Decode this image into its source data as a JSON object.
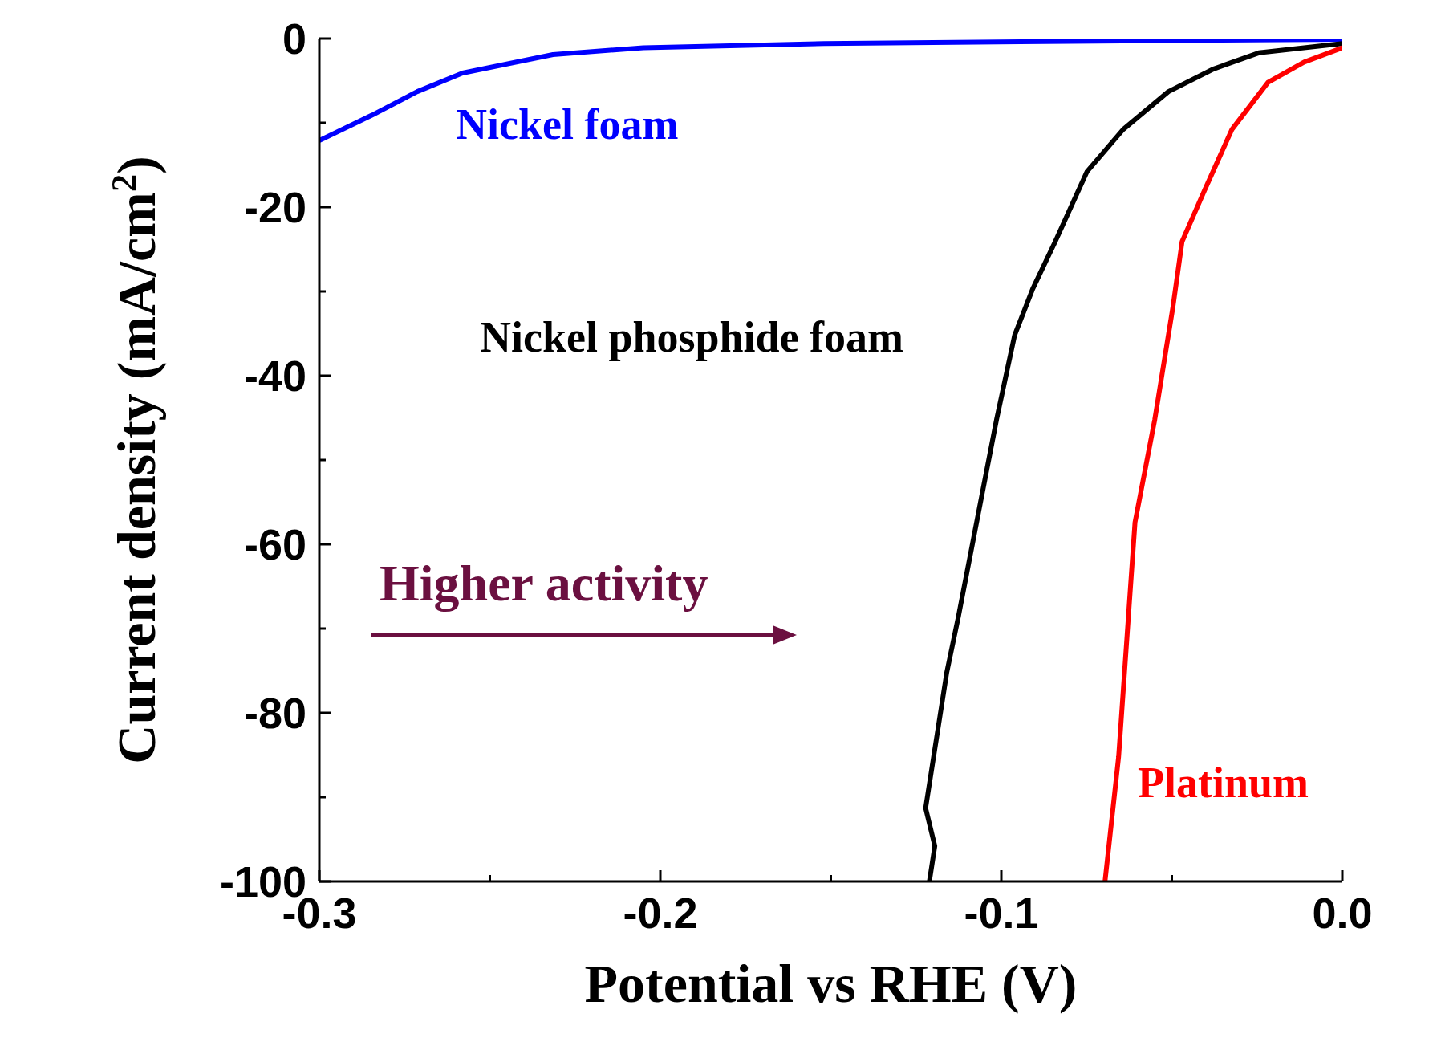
{
  "chart_data": {
    "type": "line",
    "xlabel": "Potential vs RHE (V)",
    "ylabel": "Current density (mA/cm$^{2}$)",
    "xlim": [
      -0.3,
      0.0
    ],
    "ylim": [
      -100,
      0
    ],
    "xticks": [
      {
        "value": -0.3,
        "label": "-0.3"
      },
      {
        "value": -0.25,
        "label": null
      },
      {
        "value": -0.2,
        "label": "-0.2"
      },
      {
        "value": -0.15,
        "label": null
      },
      {
        "value": -0.1,
        "label": "-0.1"
      },
      {
        "value": -0.05,
        "label": null
      },
      {
        "value": 0.0,
        "label": "0.0"
      }
    ],
    "yticks": [
      {
        "value": -100,
        "label": "-100"
      },
      {
        "value": -90,
        "label": null
      },
      {
        "value": -80,
        "label": "-80"
      },
      {
        "value": -70,
        "label": null
      },
      {
        "value": -60,
        "label": "-60"
      },
      {
        "value": -50,
        "label": null
      },
      {
        "value": -40,
        "label": "-40"
      },
      {
        "value": -30,
        "label": null
      },
      {
        "value": -20,
        "label": "-20"
      },
      {
        "value": -10,
        "label": null
      },
      {
        "value": 0,
        "label": "0"
      }
    ],
    "marker": "none",
    "line_style": "solid",
    "series": [
      {
        "name": "Nickel foam",
        "color": "#0000ff",
        "x": [
          -0.3,
          -0.2846,
          -0.2713,
          -0.258,
          -0.2315,
          -0.205,
          -0.152,
          -0.072,
          0.0
        ],
        "values": [
          -12.1,
          -9.1,
          -6.3,
          -4.1,
          -1.9,
          -1.1,
          -0.6,
          -0.3,
          -0.1
        ]
      },
      {
        "name": "Nickel phosphide foam",
        "color": "#000000",
        "x": [
          -0.1211,
          -0.1195,
          -0.1222,
          -0.116,
          -0.1126,
          -0.1062,
          -0.1014,
          -0.0961,
          -0.0908,
          -0.0842,
          -0.0749,
          -0.0643,
          -0.051,
          -0.0377,
          -0.0245,
          0.0
        ],
        "values": [
          -100,
          -95.8,
          -91.3,
          -75.2,
          -68.6,
          -55.2,
          -45.2,
          -35.2,
          -29.7,
          -24.1,
          -15.8,
          -10.8,
          -6.3,
          -3.6,
          -1.7,
          -0.6
        ]
      },
      {
        "name": "Platinum",
        "color": "#ff0000",
        "x": [
          -0.0696,
          -0.0656,
          -0.0608,
          -0.055,
          -0.0497,
          -0.047,
          -0.0404,
          -0.0324,
          -0.0218,
          -0.0112,
          0.0
        ],
        "values": [
          -100,
          -85.2,
          -57.4,
          -45.2,
          -31.9,
          -24.1,
          -18,
          -10.8,
          -5.2,
          -2.8,
          -1.1
        ]
      }
    ],
    "annotations": [
      "Higher activity"
    ]
  }
}
